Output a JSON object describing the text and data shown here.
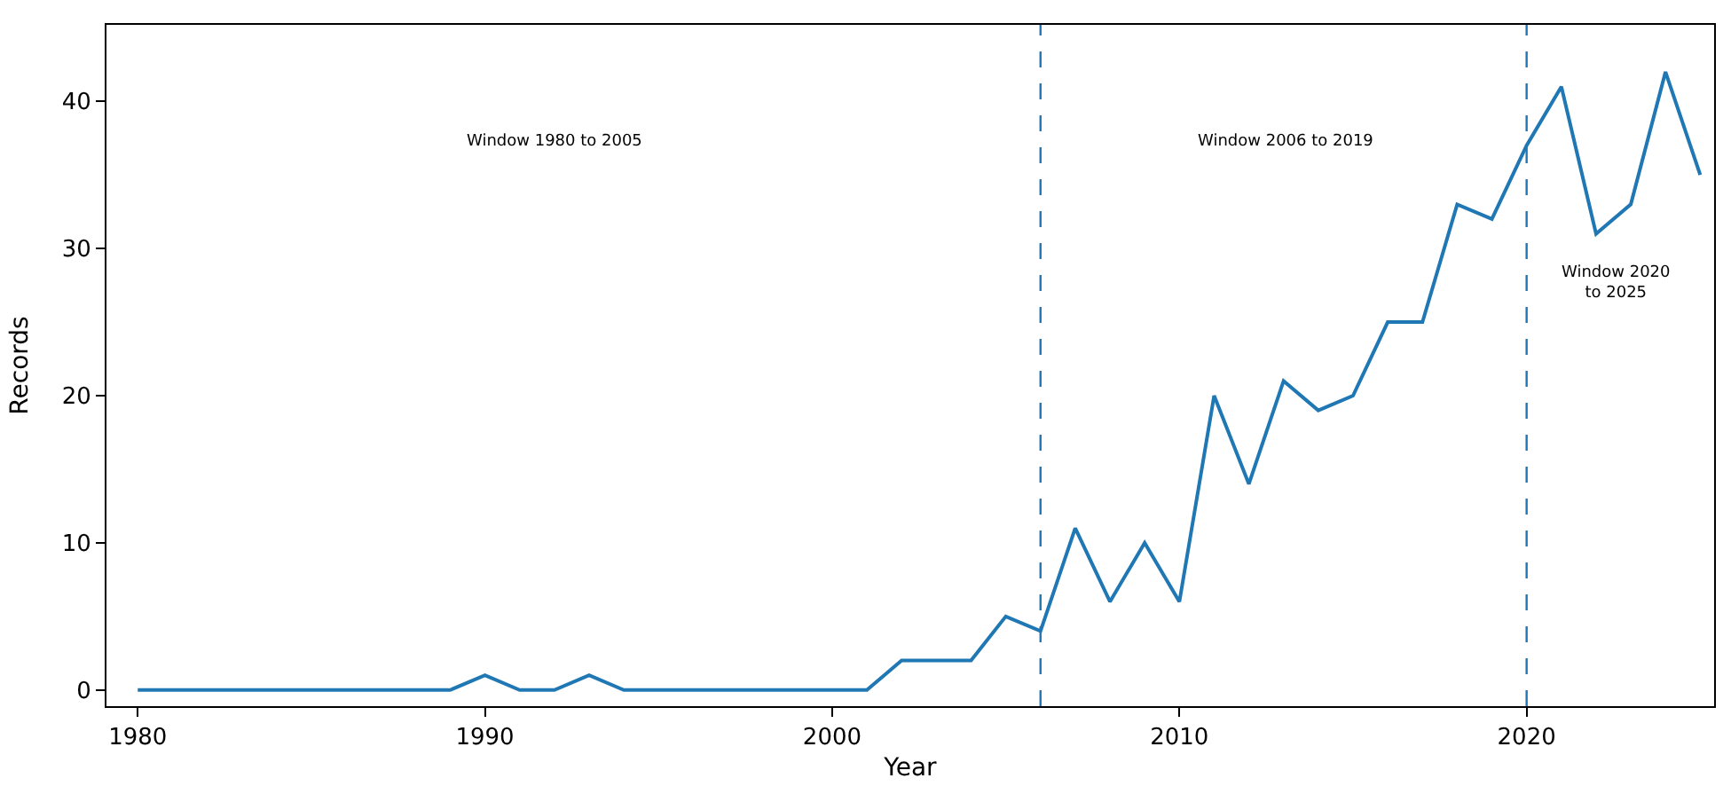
{
  "chart_data": {
    "type": "line",
    "xlabel": "Year",
    "ylabel": "Records",
    "x": [
      1980,
      1981,
      1982,
      1983,
      1984,
      1985,
      1986,
      1987,
      1988,
      1989,
      1990,
      1991,
      1992,
      1993,
      1994,
      1995,
      1996,
      1997,
      1998,
      1999,
      2000,
      2001,
      2002,
      2003,
      2004,
      2005,
      2006,
      2007,
      2008,
      2009,
      2010,
      2011,
      2012,
      2013,
      2014,
      2015,
      2016,
      2017,
      2018,
      2019,
      2020,
      2021,
      2022,
      2023,
      2024,
      2025
    ],
    "series": [
      {
        "color": "#1f77b4",
        "values": [
          0,
          0,
          0,
          0,
          0,
          0,
          0,
          0,
          0,
          0,
          1,
          0,
          0,
          1,
          0,
          0,
          0,
          0,
          0,
          0,
          0,
          0,
          2,
          2,
          2,
          5,
          4,
          11,
          6,
          10,
          6,
          20,
          14,
          21,
          19,
          20,
          25,
          25,
          33,
          32,
          37,
          41,
          31,
          33,
          42,
          35
        ]
      }
    ],
    "xlim": [
      1979.1,
      2025.4
    ],
    "xticks": [
      1980,
      1990,
      2000,
      2010,
      2020
    ],
    "ylim": [
      -1.1,
      45.2
    ],
    "yticks": [
      0,
      10,
      20,
      30,
      40
    ],
    "grid": false,
    "marker": "none",
    "line_style": "solid",
    "ref_lines": [
      {
        "axis": "x",
        "value": 2006,
        "color": "#1f77b4",
        "line_style": "dashed"
      },
      {
        "axis": "x",
        "value": 2020,
        "color": "#1f77b4",
        "line_style": "dashed"
      }
    ],
    "annotations": [
      "Window 1980 to 2005",
      "Window 2006 to 2019",
      "Window 2020\nto 2025"
    ]
  }
}
